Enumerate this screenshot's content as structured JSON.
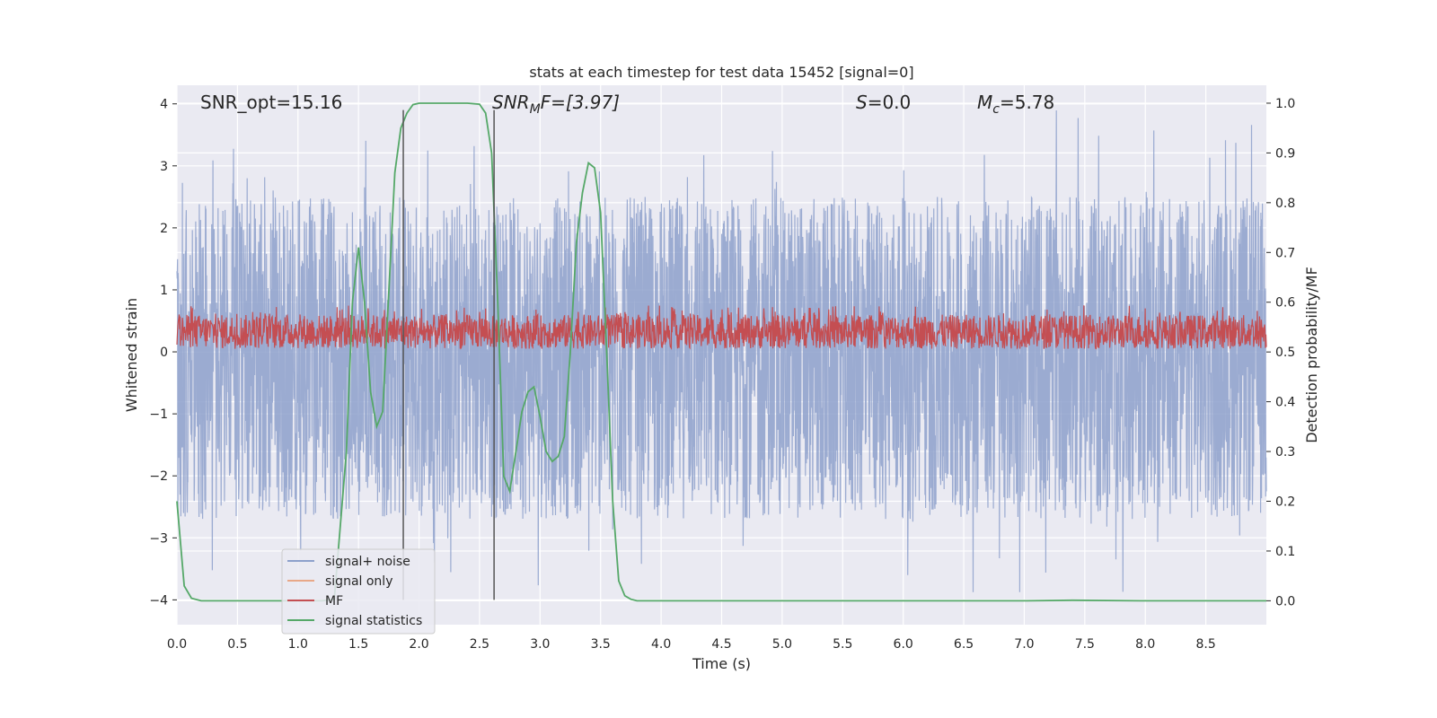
{
  "chart_data": {
    "type": "line",
    "title": "stats at each timestep for test data 15452 [signal=0]",
    "xlabel": "Time (s)",
    "ylabel": "Whitened strain",
    "y2label": "Detection probability/MF",
    "xlim": [
      0.0,
      9.0
    ],
    "ylim": [
      -4.4,
      4.3
    ],
    "y2lim": [
      -0.048,
      1.036
    ],
    "xticks": [
      0.0,
      0.5,
      1.0,
      1.5,
      2.0,
      2.5,
      3.0,
      3.5,
      4.0,
      4.5,
      5.0,
      5.5,
      6.0,
      6.5,
      7.0,
      7.5,
      8.0,
      8.5
    ],
    "xtick_labels": [
      "0.0",
      "0.5",
      "1.0",
      "1.5",
      "2.0",
      "2.5",
      "3.0",
      "3.5",
      "4.0",
      "4.5",
      "5.0",
      "5.5",
      "6.0",
      "6.5",
      "7.0",
      "7.5",
      "8.0",
      "8.5"
    ],
    "yticks": [
      4,
      3,
      2,
      1,
      0,
      -1,
      -2,
      -3,
      -4
    ],
    "ytick_labels": [
      "4",
      "3",
      "2",
      "1",
      "0",
      "−1",
      "−2",
      "−3",
      "−4"
    ],
    "y2ticks": [
      1.0,
      0.9,
      0.8,
      0.7,
      0.6,
      0.5,
      0.4,
      0.3,
      0.2,
      0.1,
      0.0
    ],
    "y2tick_labels": [
      "1.0",
      "0.9",
      "0.8",
      "0.7",
      "0.6",
      "0.5",
      "0.4",
      "0.3",
      "0.2",
      "0.1",
      "0.0"
    ],
    "grid": true,
    "legend_position": "lower-left",
    "annotations": {
      "snr_opt": "SNR_opt=15.16",
      "snr_mf_base": "SNR",
      "snr_mf_sub": "M",
      "snr_mf_rest": "F=[3.97]",
      "s_base": "S",
      "s_rest": "=0.0",
      "mc_base": "M",
      "mc_sub": "c",
      "mc_rest": "=5.78"
    },
    "vertical_lines": [
      1.87,
      2.62
    ],
    "series": [
      {
        "name": "signal+ noise",
        "color": "#8da0cb",
        "kind": "noise",
        "mean": -0.1,
        "typical_range": [
          -2.6,
          2.6
        ],
        "extreme_range": [
          -3.9,
          3.9
        ],
        "axis": "left"
      },
      {
        "name": "signal only",
        "color": "#e8a888",
        "axis": "left",
        "x": [],
        "y": []
      },
      {
        "name": "MF",
        "color": "#c44e52",
        "kind": "noise",
        "range": [
          0.0,
          0.75
        ],
        "axis": "left"
      },
      {
        "name": "signal statistics",
        "color": "#55a868",
        "axis": "right",
        "x": [
          0.0,
          0.06,
          0.12,
          0.2,
          0.35,
          0.6,
          0.9,
          1.2,
          1.3,
          1.4,
          1.45,
          1.5,
          1.55,
          1.6,
          1.65,
          1.7,
          1.75,
          1.8,
          1.85,
          1.9,
          1.95,
          2.0,
          2.1,
          2.2,
          2.4,
          2.5,
          2.55,
          2.6,
          2.65,
          2.7,
          2.75,
          2.8,
          2.85,
          2.9,
          2.95,
          3.0,
          3.05,
          3.1,
          3.15,
          3.2,
          3.25,
          3.3,
          3.35,
          3.4,
          3.45,
          3.5,
          3.55,
          3.6,
          3.65,
          3.7,
          3.75,
          3.8,
          3.9,
          4.0,
          5.0,
          6.0,
          7.0,
          7.4,
          8.0,
          9.0
        ],
        "y": [
          0.2,
          0.03,
          0.005,
          0.0,
          0.0,
          0.0,
          0.0,
          0.0,
          0.003,
          0.3,
          0.6,
          0.71,
          0.6,
          0.42,
          0.35,
          0.38,
          0.62,
          0.86,
          0.95,
          0.98,
          0.997,
          1.0,
          1.0,
          1.0,
          1.0,
          0.998,
          0.98,
          0.9,
          0.6,
          0.25,
          0.22,
          0.3,
          0.38,
          0.42,
          0.43,
          0.37,
          0.3,
          0.28,
          0.29,
          0.33,
          0.5,
          0.72,
          0.82,
          0.88,
          0.87,
          0.78,
          0.5,
          0.2,
          0.04,
          0.01,
          0.003,
          0.0,
          0.0,
          0.0,
          0.0,
          0.0,
          0.0,
          0.001,
          0.0,
          0.0
        ]
      }
    ]
  }
}
